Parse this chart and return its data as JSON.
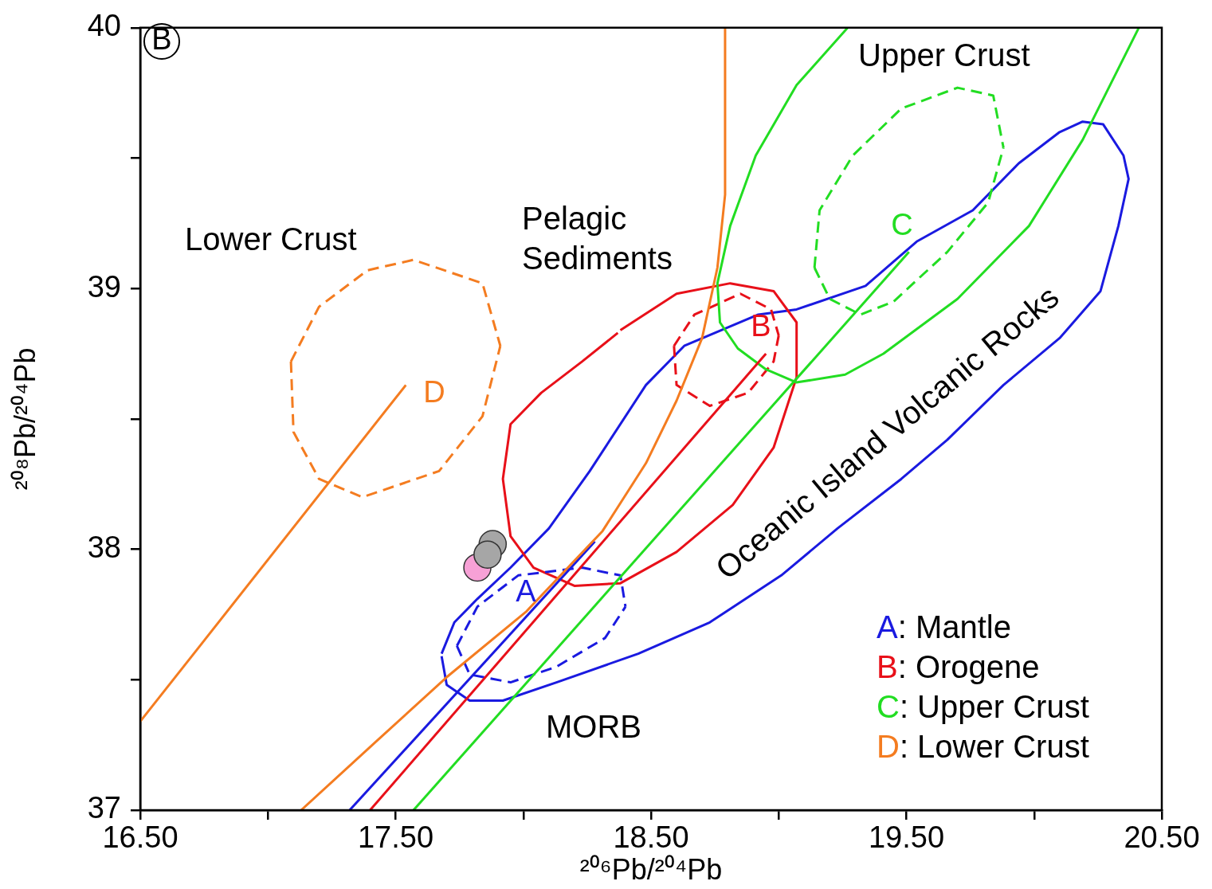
{
  "chart_data": {
    "type": "scatter",
    "xlabel": "²⁰⁶Pb/²⁰⁴Pb",
    "ylabel": "²⁰⁸Pb/²⁰⁴Pb",
    "grid": false,
    "legend": false,
    "xlim": [
      16.5,
      20.5
    ],
    "ylim": [
      37,
      40
    ],
    "xticks": [
      {
        "value": 16.5,
        "label": "16.50"
      },
      {
        "value": 17,
        "label": null
      },
      {
        "value": 17.5,
        "label": "17.50"
      },
      {
        "value": 18,
        "label": null
      },
      {
        "value": 18.5,
        "label": "18.50"
      },
      {
        "value": 19,
        "label": null
      },
      {
        "value": 19.5,
        "label": "19.50"
      },
      {
        "value": 20,
        "label": null
      },
      {
        "value": 20.5,
        "label": "20.50"
      }
    ],
    "yticks": [
      37,
      {
        "value": 37.5,
        "label": null
      },
      38,
      {
        "value": 38.5,
        "label": null
      },
      39,
      {
        "value": 39.5,
        "label": null
      },
      40
    ],
    "series": [
      {
        "type": "line",
        "color": "#f47c20",
        "marker": "none",
        "line_style": "solid",
        "x": [
          16.5,
          17.54
        ],
        "values": [
          37.34,
          38.63
        ]
      },
      {
        "type": "line",
        "color": "#f47c20",
        "marker": "none",
        "line_style": "solid",
        "x": [
          17.13,
          17.42,
          17.7,
          18.01,
          18.31,
          18.48,
          18.6,
          18.7,
          18.76,
          18.79,
          18.79
        ],
        "values": [
          37.0,
          37.26,
          37.51,
          37.76,
          38.07,
          38.33,
          38.57,
          38.81,
          39.08,
          39.36,
          40.0
        ]
      },
      {
        "type": "line",
        "color": "#1a1ae0",
        "marker": "none",
        "line_style": "solid",
        "x": [
          17.32,
          18.28
        ],
        "values": [
          37.0,
          38.03
        ]
      },
      {
        "type": "line",
        "color": "#e81019",
        "marker": "none",
        "line_style": "solid",
        "x": [
          17.4,
          18.95
        ],
        "values": [
          37.0,
          38.75
        ]
      },
      {
        "type": "line",
        "color": "#22dd22",
        "marker": "none",
        "line_style": "solid",
        "x": [
          17.57,
          19.51
        ],
        "values": [
          37.0,
          39.14
        ]
      },
      {
        "type": "line",
        "color": "#22dd22",
        "marker": "none",
        "line_style": "solid",
        "x": [
          19.27,
          19.07,
          18.91,
          18.81,
          18.76,
          18.77,
          18.84,
          18.95,
          19.07,
          19.26,
          19.41,
          19.7,
          19.98,
          20.19,
          20.41
        ],
        "values": [
          40.0,
          39.78,
          39.51,
          39.24,
          39.02,
          38.87,
          38.77,
          38.69,
          38.64,
          38.67,
          38.75,
          38.96,
          39.24,
          39.57,
          40.0
        ]
      },
      {
        "type": "line",
        "color": "#f47c20",
        "marker": "none",
        "line_style": "dashed",
        "x": [
          17.09,
          17.2,
          17.39,
          17.57,
          17.84,
          17.91
        ],
        "values": [
          38.72,
          38.93,
          39.07,
          39.11,
          39.02,
          38.78
        ]
      },
      {
        "type": "line",
        "color": "#f47c20",
        "marker": "none",
        "line_style": "dashed",
        "x": [
          17.09,
          17.1,
          17.2,
          17.37,
          17.67,
          17.84,
          17.91
        ],
        "values": [
          38.72,
          38.45,
          38.27,
          38.2,
          38.3,
          38.51,
          38.78
        ]
      },
      {
        "type": "line",
        "color": "#e81019",
        "marker": "none",
        "line_style": "dashed",
        "x": [
          18.59,
          18.67,
          18.85,
          18.97,
          19.0
        ],
        "values": [
          38.78,
          38.9,
          38.98,
          38.92,
          38.82
        ]
      },
      {
        "type": "line",
        "color": "#e81019",
        "marker": "none",
        "line_style": "dashed",
        "x": [
          18.59,
          18.6,
          18.73,
          18.88,
          18.98,
          19.0
        ],
        "values": [
          38.78,
          38.63,
          38.55,
          38.6,
          38.72,
          38.82
        ]
      },
      {
        "type": "line",
        "color": "#22dd22",
        "marker": "none",
        "line_style": "dashed",
        "x": [
          19.14,
          19.16,
          19.29,
          19.48,
          19.7,
          19.84,
          19.88
        ],
        "values": [
          39.08,
          39.3,
          39.51,
          39.69,
          39.77,
          39.74,
          39.54
        ]
      },
      {
        "type": "line",
        "color": "#22dd22",
        "marker": "none",
        "line_style": "dashed",
        "x": [
          19.14,
          19.2,
          19.32,
          19.45,
          19.66,
          19.82,
          19.88
        ],
        "values": [
          39.08,
          38.96,
          38.9,
          38.95,
          39.14,
          39.33,
          39.54
        ]
      },
      {
        "type": "line",
        "color": "#1a1ae0",
        "marker": "none",
        "line_style": "dashed",
        "x": [
          17.74,
          17.82,
          17.98,
          18.23,
          18.38,
          18.4
        ],
        "values": [
          37.63,
          37.78,
          37.9,
          37.93,
          37.9,
          37.78
        ]
      },
      {
        "type": "line",
        "color": "#1a1ae0",
        "marker": "none",
        "line_style": "dashed",
        "x": [
          17.74,
          17.79,
          17.95,
          18.13,
          18.32,
          18.4
        ],
        "values": [
          37.63,
          37.52,
          37.49,
          37.55,
          37.66,
          37.78
        ]
      },
      {
        "type": "line",
        "color": "#e81019",
        "marker": "none",
        "line_style": "solid",
        "x": [
          18.38,
          18.6,
          18.81,
          18.98,
          19.07,
          19.07,
          18.98,
          18.82,
          18.6,
          18.38,
          18.2,
          18.04,
          17.95,
          17.92,
          17.95,
          18.07,
          18.23,
          18.37
        ],
        "values": [
          38.84,
          38.98,
          39.02,
          38.99,
          38.87,
          38.66,
          38.39,
          38.17,
          37.99,
          37.87,
          37.86,
          37.93,
          38.05,
          38.27,
          38.48,
          38.6,
          38.72,
          38.83
        ]
      },
      {
        "type": "line",
        "color": "#1a1ae0",
        "marker": "none",
        "line_style": "solid",
        "x": [
          17.68,
          17.73,
          17.82,
          17.95,
          18.1,
          18.26,
          18.48,
          18.63,
          18.92,
          19.07,
          19.34,
          19.54,
          19.76,
          19.94,
          20.1,
          20.19,
          20.27,
          20.35,
          20.37,
          20.33,
          20.26,
          20.1,
          19.88,
          19.66,
          19.48,
          19.23,
          19.01,
          18.73,
          18.45,
          18.13,
          17.92,
          17.79,
          17.7,
          17.68
        ],
        "values": [
          37.6,
          37.72,
          37.81,
          37.93,
          38.08,
          38.3,
          38.63,
          38.78,
          38.9,
          38.92,
          39.01,
          39.18,
          39.3,
          39.48,
          39.6,
          39.64,
          39.63,
          39.51,
          39.42,
          39.24,
          38.99,
          38.81,
          38.63,
          38.42,
          38.27,
          38.08,
          37.9,
          37.72,
          37.6,
          37.49,
          37.42,
          37.42,
          37.48,
          37.59
        ]
      },
      {
        "type": "scatter",
        "color": "#a6a6a6",
        "marker": "circle",
        "x": [
          17.88,
          17.86
        ],
        "values": [
          38.02,
          37.98
        ]
      },
      {
        "type": "scatter",
        "color": "#f7a1d6",
        "marker": "circle",
        "x": [
          17.82
        ],
        "values": [
          37.93
        ]
      }
    ],
    "annotations": [
      "B",
      "A: Mantle",
      "B: Orogene",
      "C: Upper Crust",
      "D: Lower Crust",
      "Lower Crust",
      "Pelagic Sediments",
      "Upper Crust",
      "MORB",
      "Oceanic Island Volcanic Rocks",
      "A",
      "B",
      "C",
      "D"
    ]
  }
}
